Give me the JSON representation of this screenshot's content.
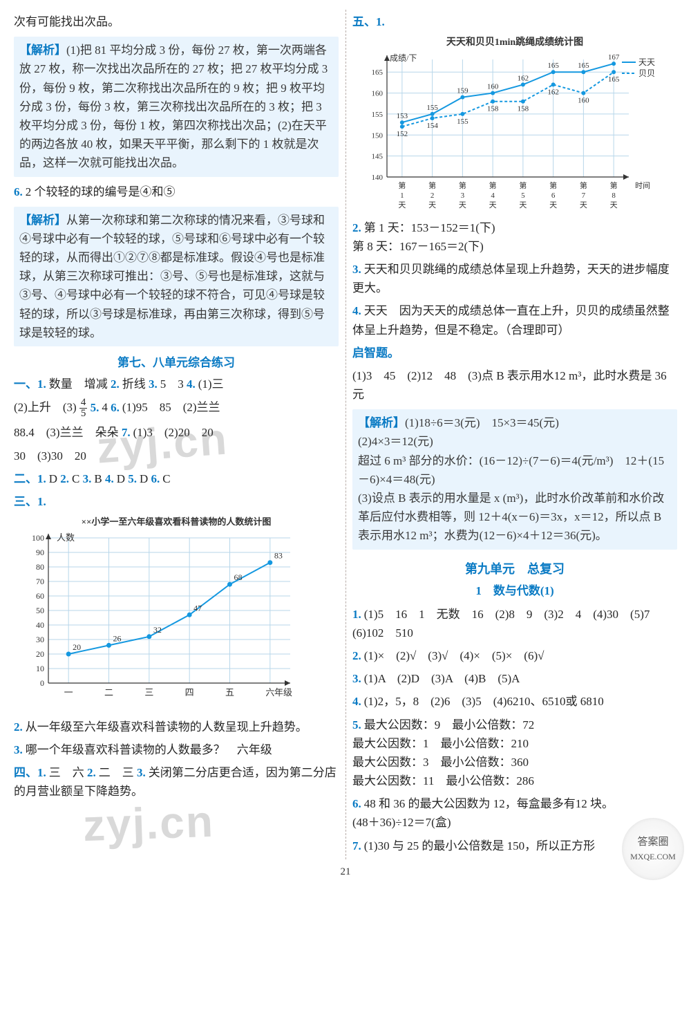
{
  "page_number": "21",
  "watermarks": {
    "w1": "zyj.cn",
    "w2": "zyj.cn"
  },
  "corner_logo": {
    "line1": "答案圈",
    "line2": "MXQE.COM"
  },
  "left": {
    "p0": "次有可能找出次品。",
    "analysis1_label": "【解析】",
    "analysis1": "(1)把 81 平均分成 3 份，每份 27 枚，第一次两端各放 27 枚，称一次找出次品所在的 27 枚；把 27 枚平均分成 3 份，每份 9 枚，第二次称找出次品所在的 9 枚；把 9 枚平均分成 3 份，每份 3 枚，第三次称找出次品所在的 3 枚；把 3 枚平均分成 3 份，每份 1 枚，第四次称找出次品；(2)在天平的两边各放 40 枚，如果天平平衡，那么剩下的 1 枚就是次品，这样一次就可能找出次品。",
    "p6_num": "6.",
    "p6": "2 个较轻的球的编号是④和⑤",
    "analysis2_label": "【解析】",
    "analysis2": "从第一次称球和第二次称球的情况来看，③号球和④号球中必有一个较轻的球，⑤号球和⑥号球中必有一个较轻的球，从而得出①②⑦⑧都是标准球。假设④号也是标准球，从第三次称球可推出：③号、⑤号也是标准球，这就与③号、④号球中必有一个较轻的球不符合，可见④号球是较轻的球，所以③号球是标准球，再由第三次称球，得到⑤号球是较轻的球。",
    "sec78_title": "第七、八单元综合练习",
    "yi_label": "一、1.",
    "yi1": "数量　增减",
    "yi2_num": "2.",
    "yi2": "折线",
    "yi3_num": "3.",
    "yi3": "5　3",
    "yi4_num": "4.",
    "yi4": "(1)三",
    "yi4b": "(2)上升　(3)",
    "frac": {
      "num": "4",
      "den": "5"
    },
    "yi5_num": "5.",
    "yi5": "4",
    "yi6_num": "6.",
    "yi6": "(1)95　85　(2)兰兰",
    "yi6b": "88.4　(3)兰兰　朵朵",
    "yi7_num": "7.",
    "yi7": "(1)3　(2)20　20",
    "yi7b": "30　(3)30　20",
    "er_label": "二、1.",
    "er": "D",
    "er2_num": "2.",
    "er2": "C",
    "er3_num": "3.",
    "er3": "B",
    "er4_num": "4.",
    "er4": "D",
    "er5_num": "5.",
    "er5": "D",
    "er6_num": "6.",
    "er6": "C",
    "san_label": "三、1.",
    "chart1_title": "××小学一至六年级喜欢看科普读物的人数统计图",
    "chart1": {
      "type": "line",
      "x_labels": [
        "一",
        "二",
        "三",
        "四",
        "五",
        "六",
        "年级"
      ],
      "y_label": "人数",
      "y_ticks": [
        0,
        10,
        20,
        30,
        40,
        50,
        60,
        70,
        80,
        90,
        100
      ],
      "values": [
        20,
        26,
        32,
        47,
        68,
        83
      ],
      "line_color": "#1498e0",
      "marker_color": "#1498e0",
      "grid_color": "#b7d6ea",
      "axis_color": "#333333",
      "bg_color": "#ffffff",
      "label_fontsize": 12
    },
    "san2_num": "2.",
    "san2": "从一年级至六年级喜欢科普读物的人数呈现上升趋势。",
    "san3_num": "3.",
    "san3": "哪一个年级喜欢科普读物的人数最多？　六年级",
    "si_label": "四、1.",
    "si1": "三　六",
    "si2_num": "2.",
    "si2": "二　三",
    "si3_num": "3.",
    "si3": "关闭第二分店更合适，因为第二分店的月营业额呈下降趋势。"
  },
  "right": {
    "wu_label": "五、1.",
    "chart2_title": "天天和贝贝1min跳绳成绩统计图",
    "chart2_legend": {
      "a": "天天",
      "b": "贝贝",
      "a_style": "solid",
      "b_style": "dashed",
      "color_a": "#1498e0",
      "color_b": "#1498e0"
    },
    "chart2": {
      "type": "line",
      "x_labels": [
        "第1天",
        "第2天",
        "第3天",
        "第4天",
        "第5天",
        "第6天",
        "第7天",
        "第8天",
        "时间"
      ],
      "y_label": "成绩/下",
      "y_ticks": [
        140,
        145,
        150,
        155,
        160,
        165
      ],
      "series_a": [
        153,
        155,
        159,
        160,
        162,
        165,
        165,
        167
      ],
      "series_b": [
        152,
        154,
        155,
        158,
        158,
        162,
        160,
        165
      ],
      "line_color_a": "#1498e0",
      "line_color_b": "#1498e0",
      "grid_color": "#b7d6ea",
      "axis_color": "#333333",
      "bg_color": "#ffffff",
      "label_fontsize": 11
    },
    "wu2_num": "2.",
    "wu2a": "第 1 天：153－152＝1(下)",
    "wu2b": "第 8 天：167－165＝2(下)",
    "wu3_num": "3.",
    "wu3": "天天和贝贝跳绳的成绩总体呈现上升趋势，天天的进步幅度更大。",
    "wu4_num": "4.",
    "wu4": "天天　因为天天的成绩总体一直在上升，贝贝的成绩虽然整体呈上升趋势，但是不稳定。（合理即可）",
    "qizhi_label": "启智题。",
    "qizhi": "(1)3　45　(2)12　48　(3)点 B 表示用水12 m³，此时水费是 36 元",
    "analysis3_label": "【解析】",
    "analysis3": "(1)18÷6＝3(元)　15×3＝45(元)\n(2)4×3＝12(元)\n超过 6 m³ 部分的水价：(16－12)÷(7－6)＝4(元/m³)　12＋(15－6)×4＝48(元)\n(3)设点 B 表示的用水量是 x (m³)，此时水价改革前和水价改革后应付水费相等，则 12＋4(x－6)＝3x，x＝12，所以点 B 表示用水12 m³；水费为(12－6)×4＋12＝36(元)。",
    "unit9_title": "第九单元　总复习",
    "unit9_sub": "1　数与代数(1)",
    "r1_num": "1.",
    "r1": "(1)5　16　1　无数　16　(2)8　9　(3)2　4　(4)30　(5)7　(6)102　510",
    "r2_num": "2.",
    "r2": "(1)×　(2)√　(3)√　(4)×　(5)×　(6)√",
    "r3_num": "3.",
    "r3": "(1)A　(2)D　(3)A　(4)B　(5)A",
    "r4_num": "4.",
    "r4": "(1)2，5，8　(2)6　(3)5　(4)6210、6510或 6810",
    "r5_num": "5.",
    "r5a": "最大公因数：9　最小公倍数：72",
    "r5b": "最大公因数：1　最小公倍数：210",
    "r5c": "最大公因数：3　最小公倍数：360",
    "r5d": "最大公因数：11　最小公倍数：286",
    "r6_num": "6.",
    "r6a": "48 和 36 的最大公因数为 12，每盒最多有12 块。",
    "r6b": "(48＋36)÷12＝7(盒)",
    "r7_num": "7.",
    "r7": "(1)30 与 25 的最小公倍数是 150，所以正方形"
  }
}
